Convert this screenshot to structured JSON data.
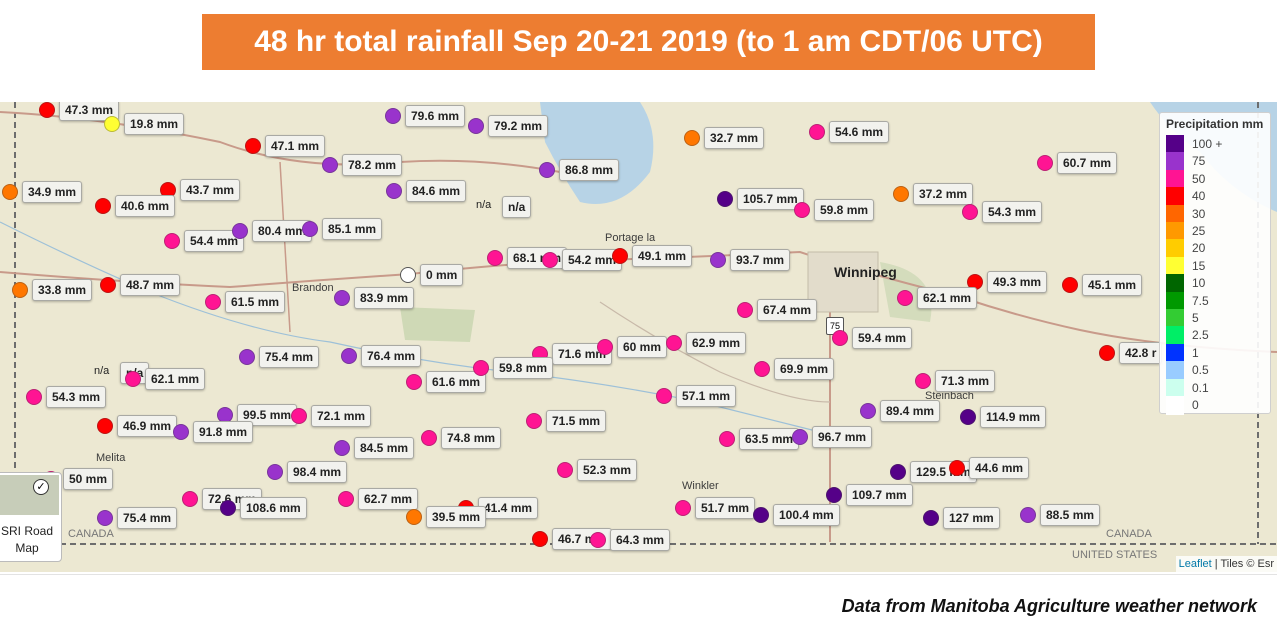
{
  "title": "48 hr total rainfall Sep 20-21 2019 (to 1 am CDT/06 UTC)",
  "source_note": "Data from Manitoba Agriculture weather network",
  "map": {
    "towns": [
      {
        "id": "brandon",
        "name": "Brandon"
      },
      {
        "id": "portage",
        "name": "Portage la"
      },
      {
        "id": "winnipeg",
        "name": "Winnipeg"
      },
      {
        "id": "steinbach",
        "name": "Steinbach"
      },
      {
        "id": "melita",
        "name": "Melita"
      },
      {
        "id": "winkler",
        "name": "Winkler"
      },
      {
        "id": "canada-left",
        "name": "CANADA"
      },
      {
        "id": "canada-right",
        "name": "CANADA"
      },
      {
        "id": "united-states",
        "name": "UNITED STATES"
      }
    ],
    "highway_shield": "75",
    "stations": [
      {
        "label": "47.3 mm",
        "color": "#ff0000"
      },
      {
        "label": "19.8 mm",
        "color": "#ffff33"
      },
      {
        "label": "79.6 mm",
        "color": "#9933cc"
      },
      {
        "label": "79.2 mm",
        "color": "#9933cc"
      },
      {
        "label": "47.1 mm",
        "color": "#ff0000"
      },
      {
        "label": "78.2 mm",
        "color": "#9933cc"
      },
      {
        "label": "86.8 mm",
        "color": "#9933cc"
      },
      {
        "label": "32.7 mm",
        "color": "#ff7700"
      },
      {
        "label": "54.6 mm",
        "color": "#ff1493"
      },
      {
        "label": "60.7 mm",
        "color": "#ff1493"
      },
      {
        "label": "34.9 mm",
        "color": "#ff7700"
      },
      {
        "label": "43.7 mm",
        "color": "#ff0000"
      },
      {
        "label": "40.6 mm",
        "color": "#ff0000"
      },
      {
        "label": "84.6 mm",
        "color": "#9933cc"
      },
      {
        "label": "n/a",
        "color": ""
      },
      {
        "label": "105.7 mm",
        "color": "#550088"
      },
      {
        "label": "59.8 mm",
        "color": "#ff1493"
      },
      {
        "label": "37.2 mm",
        "color": "#ff7700"
      },
      {
        "label": "54.3 mm",
        "color": "#ff1493"
      },
      {
        "label": "54.4 mm",
        "color": "#ff1493"
      },
      {
        "label": "80.4 mm",
        "color": "#9933cc"
      },
      {
        "label": "85.1 mm",
        "color": "#9933cc"
      },
      {
        "label": "33.8 mm",
        "color": "#ff7700"
      },
      {
        "label": "48.7 mm",
        "color": "#ff0000"
      },
      {
        "label": "61.5 mm",
        "color": "#ff1493"
      },
      {
        "label": "83.9 mm",
        "color": "#9933cc"
      },
      {
        "label": "0 mm",
        "color": "#ffffff"
      },
      {
        "label": "68.1 mm",
        "color": "#ff1493"
      },
      {
        "label": "54.2 mm",
        "color": "#ff1493"
      },
      {
        "label": "49.1 mm",
        "color": "#ff0000"
      },
      {
        "label": "93.7 mm",
        "color": "#9933cc"
      },
      {
        "label": "49.3 mm",
        "color": "#ff0000"
      },
      {
        "label": "45.1 mm",
        "color": "#ff0000"
      },
      {
        "label": "62.1 mm",
        "color": "#ff1493"
      },
      {
        "label": "67.4 mm",
        "color": "#ff1493"
      },
      {
        "label": "59.4 mm",
        "color": "#ff1493"
      },
      {
        "label": "42.8 r",
        "color": "#ff0000"
      },
      {
        "label": "n/a",
        "color": ""
      },
      {
        "label": "62.1 mm",
        "color": "#ff1493"
      },
      {
        "label": "75.4 mm",
        "color": "#9933cc"
      },
      {
        "label": "76.4 mm",
        "color": "#9933cc"
      },
      {
        "label": "71.6 mm",
        "color": "#ff1493"
      },
      {
        "label": "60 mm",
        "color": "#ff1493"
      },
      {
        "label": "62.9 mm",
        "color": "#ff1493"
      },
      {
        "label": "54.3 mm",
        "color": "#ff1493"
      },
      {
        "label": "61.6 mm",
        "color": "#ff1493"
      },
      {
        "label": "59.8 mm",
        "color": "#ff1493"
      },
      {
        "label": "69.9 mm",
        "color": "#ff1493"
      },
      {
        "label": "71.3 mm",
        "color": "#ff1493"
      },
      {
        "label": "57.1 mm",
        "color": "#ff1493"
      },
      {
        "label": "89.4 mm",
        "color": "#9933cc"
      },
      {
        "label": "114.9 mm",
        "color": "#550088"
      },
      {
        "label": "46.9 mm",
        "color": "#ff0000"
      },
      {
        "label": "99.5 mm",
        "color": "#9933cc"
      },
      {
        "label": "72.1 mm",
        "color": "#ff1493"
      },
      {
        "label": "91.8 mm",
        "color": "#9933cc"
      },
      {
        "label": "71.5 mm",
        "color": "#ff1493"
      },
      {
        "label": "63.5 mm",
        "color": "#ff1493"
      },
      {
        "label": "96.7 mm",
        "color": "#9933cc"
      },
      {
        "label": "84.5 mm",
        "color": "#9933cc"
      },
      {
        "label": "74.8 mm",
        "color": "#ff1493"
      },
      {
        "label": "50 mm",
        "color": "#ff1493"
      },
      {
        "label": "98.4 mm",
        "color": "#9933cc"
      },
      {
        "label": "52.3 mm",
        "color": "#ff1493"
      },
      {
        "label": "129.5 mm",
        "color": "#550088"
      },
      {
        "label": "44.6 mm",
        "color": "#ff0000"
      },
      {
        "label": "72.6 mm",
        "color": "#ff1493"
      },
      {
        "label": "108.6 mm",
        "color": "#550088"
      },
      {
        "label": "62.7 mm",
        "color": "#ff1493"
      },
      {
        "label": "41.4 mm",
        "color": "#ff0000"
      },
      {
        "label": "51.7 mm",
        "color": "#ff1493"
      },
      {
        "label": "109.7 mm",
        "color": "#550088"
      },
      {
        "label": "75.4 mm",
        "color": "#9933cc"
      },
      {
        "label": "39.5 mm",
        "color": "#ff7700"
      },
      {
        "label": "100.4 mm",
        "color": "#550088"
      },
      {
        "label": "127 mm",
        "color": "#550088"
      },
      {
        "label": "88.5 mm",
        "color": "#9933cc"
      },
      {
        "label": "46.7 mm",
        "color": "#ff0000"
      },
      {
        "label": "64.3 mm",
        "color": "#ff1493"
      }
    ]
  },
  "legend": {
    "title": "Precipitation mm",
    "items": [
      {
        "label": "100 +",
        "color": "#550088"
      },
      {
        "label": "75",
        "color": "#9933cc"
      },
      {
        "label": "50",
        "color": "#ff1493"
      },
      {
        "label": "40",
        "color": "#ff0000"
      },
      {
        "label": "30",
        "color": "#ff6600"
      },
      {
        "label": "25",
        "color": "#ff9900"
      },
      {
        "label": "20",
        "color": "#ffcc00"
      },
      {
        "label": "15",
        "color": "#ffff33"
      },
      {
        "label": "10",
        "color": "#006600"
      },
      {
        "label": "7.5",
        "color": "#009900"
      },
      {
        "label": "5",
        "color": "#33cc33"
      },
      {
        "label": "2.5",
        "color": "#00ee66"
      },
      {
        "label": "1",
        "color": "#0033ff"
      },
      {
        "label": "0.5",
        "color": "#99ccff"
      },
      {
        "label": "0.1",
        "color": "#ccffee"
      },
      {
        "label": "0",
        "color": "#ffffff"
      }
    ]
  },
  "layer_control": {
    "label": "SRI Road Map",
    "check_icon": "check-icon"
  },
  "attribution": {
    "leaflet": "Leaflet",
    "rest": " | Tiles © Esr"
  }
}
